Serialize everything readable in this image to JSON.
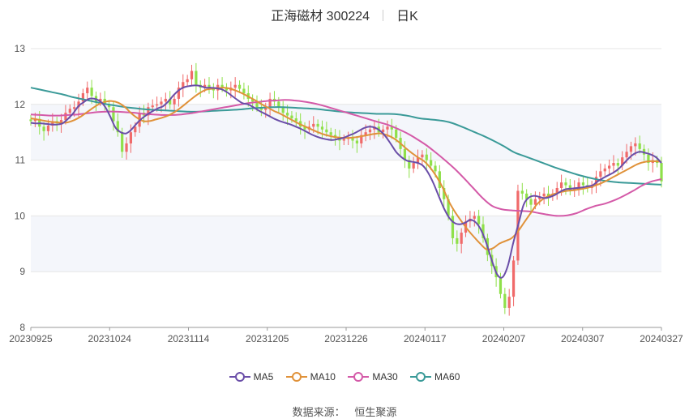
{
  "header": {
    "stock": "正海磁材 300224",
    "period": "日K"
  },
  "source": {
    "label": "数据来源：",
    "name": "恒生聚源"
  },
  "colors": {
    "up": "#f06a6a",
    "down": "#8fe04a",
    "ma5": "#6a4ea8",
    "ma10": "#e0923a",
    "ma30": "#d45aa8",
    "ma60": "#3a9a98",
    "grid": "#e6e6e6",
    "band": "#f4f6fb"
  },
  "chart_data": {
    "type": "candlestick",
    "title": "正海磁材 300224",
    "ylim": [
      8,
      13
    ],
    "yticks": [
      8,
      9,
      10,
      11,
      12,
      13
    ],
    "xticks": [
      "20230925",
      "20231024",
      "20231114",
      "20231205",
      "20231226",
      "20240117",
      "20240207",
      "20240307",
      "20240327"
    ],
    "legend": [
      "MA5",
      "MA10",
      "MA30",
      "MA60"
    ],
    "legend_position": "bottom",
    "close": [
      11.7,
      11.74,
      11.6,
      11.52,
      11.62,
      11.7,
      11.66,
      11.72,
      11.85,
      11.92,
      11.95,
      12.05,
      12.2,
      12.3,
      12.15,
      12.05,
      12.1,
      12.0,
      11.95,
      11.7,
      11.5,
      11.15,
      11.3,
      11.5,
      11.6,
      11.85,
      11.8,
      11.95,
      11.98,
      12.0,
      12.05,
      12.1,
      12.0,
      12.1,
      12.3,
      12.4,
      12.45,
      12.6,
      12.35,
      12.3,
      12.35,
      12.3,
      12.25,
      12.35,
      12.3,
      12.25,
      12.3,
      12.35,
      12.28,
      12.2,
      12.1,
      12.05,
      11.95,
      11.9,
      11.95,
      12.1,
      12.05,
      11.95,
      11.85,
      11.8,
      11.75,
      11.7,
      11.6,
      11.55,
      11.6,
      11.65,
      11.6,
      11.55,
      11.5,
      11.45,
      11.4,
      11.35,
      11.38,
      11.4,
      11.35,
      11.3,
      11.45,
      11.5,
      11.55,
      11.6,
      11.5,
      11.55,
      11.6,
      11.55,
      11.4,
      11.2,
      11.0,
      10.85,
      10.95,
      11.05,
      11.1,
      11.0,
      10.9,
      10.8,
      10.5,
      10.3,
      10.0,
      9.6,
      9.5,
      9.7,
      9.9,
      9.95,
      10.0,
      9.85,
      9.6,
      9.3,
      9.1,
      8.9,
      8.6,
      8.35,
      8.55,
      9.2,
      10.45,
      10.4,
      10.3,
      10.2,
      10.3,
      10.35,
      10.4,
      10.35,
      10.4,
      10.5,
      10.6,
      10.55,
      10.45,
      10.5,
      10.6,
      10.55,
      10.5,
      10.55,
      10.7,
      10.8,
      10.85,
      10.9,
      10.95,
      10.9,
      11.05,
      11.15,
      11.25,
      11.3,
      11.2,
      11.1,
      10.95,
      11.0,
      10.95,
      10.62
    ],
    "ma5": [
      11.67,
      11.66,
      11.66,
      11.65,
      11.64,
      11.64,
      11.66,
      11.74,
      11.84,
      11.97,
      12.04,
      12.1,
      12.1,
      12.06,
      11.96,
      11.78,
      11.58,
      11.5,
      11.48,
      11.55,
      11.66,
      11.75,
      11.82,
      11.88,
      11.93,
      11.97,
      12.06,
      12.17,
      12.26,
      12.31,
      12.33,
      12.34,
      12.33,
      12.3,
      12.3,
      12.29,
      12.27,
      12.22,
      12.15,
      12.08,
      12.02,
      12.0,
      11.95,
      11.89,
      11.84,
      11.79,
      11.74,
      11.7,
      11.67,
      11.64,
      11.6,
      11.56,
      11.51,
      11.46,
      11.42,
      11.39,
      11.37,
      11.36,
      11.38,
      11.4,
      11.44,
      11.48,
      11.53,
      11.58,
      11.6,
      11.58,
      11.52,
      11.42,
      11.28,
      11.14,
      11.05,
      10.99,
      10.97,
      10.95,
      10.9,
      10.77,
      10.58,
      10.35,
      10.13,
      9.96,
      9.87,
      9.85,
      9.88,
      9.93,
      9.88,
      9.74,
      9.5,
      9.2,
      8.95,
      8.9,
      9.1,
      9.5,
      9.85,
      10.2,
      10.33,
      10.36,
      10.34,
      10.32,
      10.34,
      10.38,
      10.44,
      10.48,
      10.49,
      10.5,
      10.51,
      10.53,
      10.55,
      10.62,
      10.68,
      10.73,
      10.78,
      10.85,
      10.95,
      11.05,
      11.12,
      11.15,
      11.13,
      11.1,
      11.05,
      10.95
    ],
    "ma10": [
      11.75,
      11.73,
      11.71,
      11.69,
      11.68,
      11.67,
      11.68,
      11.72,
      11.78,
      11.86,
      11.94,
      12.01,
      12.05,
      12.06,
      12.03,
      11.96,
      11.85,
      11.76,
      11.7,
      11.7,
      11.73,
      11.76,
      11.8,
      11.86,
      11.94,
      12.03,
      12.12,
      12.2,
      12.26,
      12.28,
      12.29,
      12.3,
      12.28,
      12.24,
      12.19,
      12.13,
      12.07,
      12.0,
      11.94,
      11.88,
      11.83,
      11.77,
      11.71,
      11.65,
      11.6,
      11.55,
      11.5,
      11.46,
      11.43,
      11.41,
      11.4,
      11.4,
      11.41,
      11.43,
      11.45,
      11.47,
      11.48,
      11.45,
      11.4,
      11.32,
      11.22,
      11.13,
      11.05,
      10.98,
      10.86,
      10.7,
      10.5,
      10.25,
      10.06,
      9.9,
      9.75,
      9.62,
      9.5,
      9.4,
      9.42,
      9.5,
      9.55,
      9.6,
      9.72,
      9.88,
      10.04,
      10.2,
      10.3,
      10.36,
      10.4,
      10.43,
      10.45,
      10.46,
      10.48,
      10.5,
      10.53,
      10.57,
      10.62,
      10.68,
      10.74,
      10.8,
      10.86,
      10.92,
      10.96,
      10.98,
      10.98,
      10.97
    ],
    "ma30": [
      11.82,
      11.81,
      11.8,
      11.8,
      11.81,
      11.82,
      11.84,
      11.86,
      11.87,
      11.87,
      11.86,
      11.85,
      11.83,
      11.82,
      11.81,
      11.81,
      11.82,
      11.84,
      11.87,
      11.9,
      11.93,
      11.96,
      11.99,
      12.02,
      12.04,
      12.06,
      12.07,
      12.08,
      12.07,
      12.05,
      12.02,
      11.98,
      11.93,
      11.88,
      11.83,
      11.78,
      11.73,
      11.68,
      11.63,
      11.56,
      11.48,
      11.38,
      11.27,
      11.14,
      11.0,
      10.85,
      10.68,
      10.5,
      10.32,
      10.18,
      10.12,
      10.1,
      10.09,
      10.08,
      10.05,
      10.02,
      10.0,
      10.01,
      10.05,
      10.12,
      10.18,
      10.22,
      10.28,
      10.36,
      10.45,
      10.55,
      10.62,
      10.66
    ],
    "ma60": [
      12.3,
      12.26,
      12.22,
      12.18,
      12.13,
      12.09,
      12.05,
      12.01,
      11.98,
      11.95,
      11.93,
      11.91,
      11.9,
      11.89,
      11.88,
      11.87,
      11.87,
      11.88,
      11.89,
      11.9,
      11.91,
      11.93,
      11.94,
      11.95,
      11.95,
      11.94,
      11.93,
      11.92,
      11.9,
      11.88,
      11.86,
      11.85,
      11.84,
      11.83,
      11.83,
      11.82,
      11.79,
      11.75,
      11.73,
      11.71,
      11.67,
      11.6,
      11.52,
      11.44,
      11.35,
      11.25,
      11.14,
      11.07,
      11.0,
      10.93,
      10.86,
      10.8,
      10.74,
      10.69,
      10.65,
      10.62,
      10.6,
      10.59,
      10.58,
      10.57,
      10.56
    ]
  }
}
